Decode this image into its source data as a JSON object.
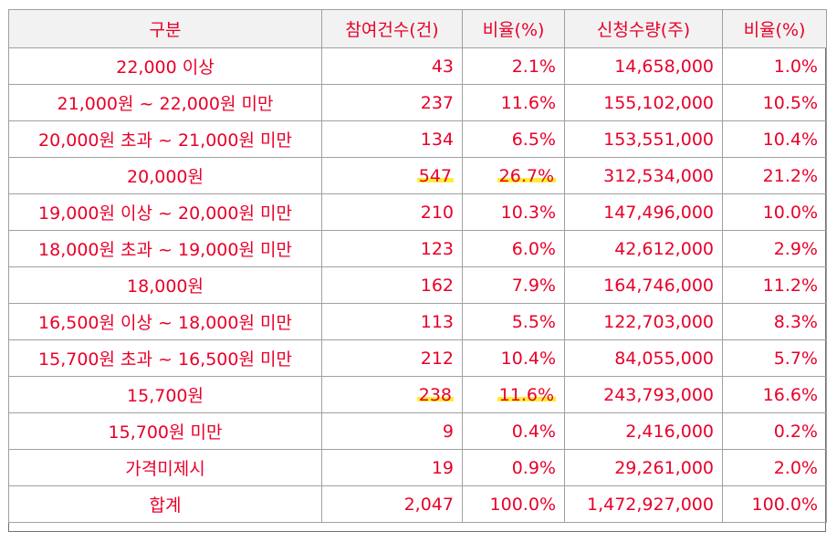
{
  "table": {
    "headers": [
      "구분",
      "참여건수(건)",
      "비율(%)",
      "신청수량(주)",
      "비율(%)"
    ],
    "rows": [
      {
        "label": "22,000 이상",
        "count": "43",
        "count_ratio": "2.1%",
        "qty": "14,658,000",
        "qty_ratio": "1.0%",
        "highlight": false
      },
      {
        "label": "21,000원 ~ 22,000원 미만",
        "count": "237",
        "count_ratio": "11.6%",
        "qty": "155,102,000",
        "qty_ratio": "10.5%",
        "highlight": false
      },
      {
        "label": "20,000원 초과 ~ 21,000원 미만",
        "count": "134",
        "count_ratio": "6.5%",
        "qty": "153,551,000",
        "qty_ratio": "10.4%",
        "highlight": false
      },
      {
        "label": "20,000원",
        "count": "547",
        "count_ratio": "26.7%",
        "qty": "312,534,000",
        "qty_ratio": "21.2%",
        "highlight": true
      },
      {
        "label": "19,000원 이상 ~ 20,000원 미만",
        "count": "210",
        "count_ratio": "10.3%",
        "qty": "147,496,000",
        "qty_ratio": "10.0%",
        "highlight": false
      },
      {
        "label": "18,000원 초과 ~ 19,000원 미만",
        "count": "123",
        "count_ratio": "6.0%",
        "qty": "42,612,000",
        "qty_ratio": "2.9%",
        "highlight": false
      },
      {
        "label": "18,000원",
        "count": "162",
        "count_ratio": "7.9%",
        "qty": "164,746,000",
        "qty_ratio": "11.2%",
        "highlight": false
      },
      {
        "label": "16,500원 이상 ~ 18,000원 미만",
        "count": "113",
        "count_ratio": "5.5%",
        "qty": "122,703,000",
        "qty_ratio": "8.3%",
        "highlight": false
      },
      {
        "label": "15,700원 초과 ~ 16,500원 미만",
        "count": "212",
        "count_ratio": "10.4%",
        "qty": "84,055,000",
        "qty_ratio": "5.7%",
        "highlight": false
      },
      {
        "label": "15,700원",
        "count": "238",
        "count_ratio": "11.6%",
        "qty": "243,793,000",
        "qty_ratio": "16.6%",
        "highlight": true
      },
      {
        "label": "15,700원 미만",
        "count": "9",
        "count_ratio": "0.4%",
        "qty": "2,416,000",
        "qty_ratio": "0.2%",
        "highlight": false
      },
      {
        "label": "가격미제시",
        "count": "19",
        "count_ratio": "0.9%",
        "qty": "29,261,000",
        "qty_ratio": "2.0%",
        "highlight": false
      },
      {
        "label": "합계",
        "count": "2,047",
        "count_ratio": "100.0%",
        "qty": "1,472,927,000",
        "qty_ratio": "100.0%",
        "highlight": false
      }
    ]
  },
  "colors": {
    "text": "#e8002a",
    "header_bg": "#f2f2f2",
    "grid_line": "#a0a0a0",
    "highlight": "#ffee33"
  }
}
